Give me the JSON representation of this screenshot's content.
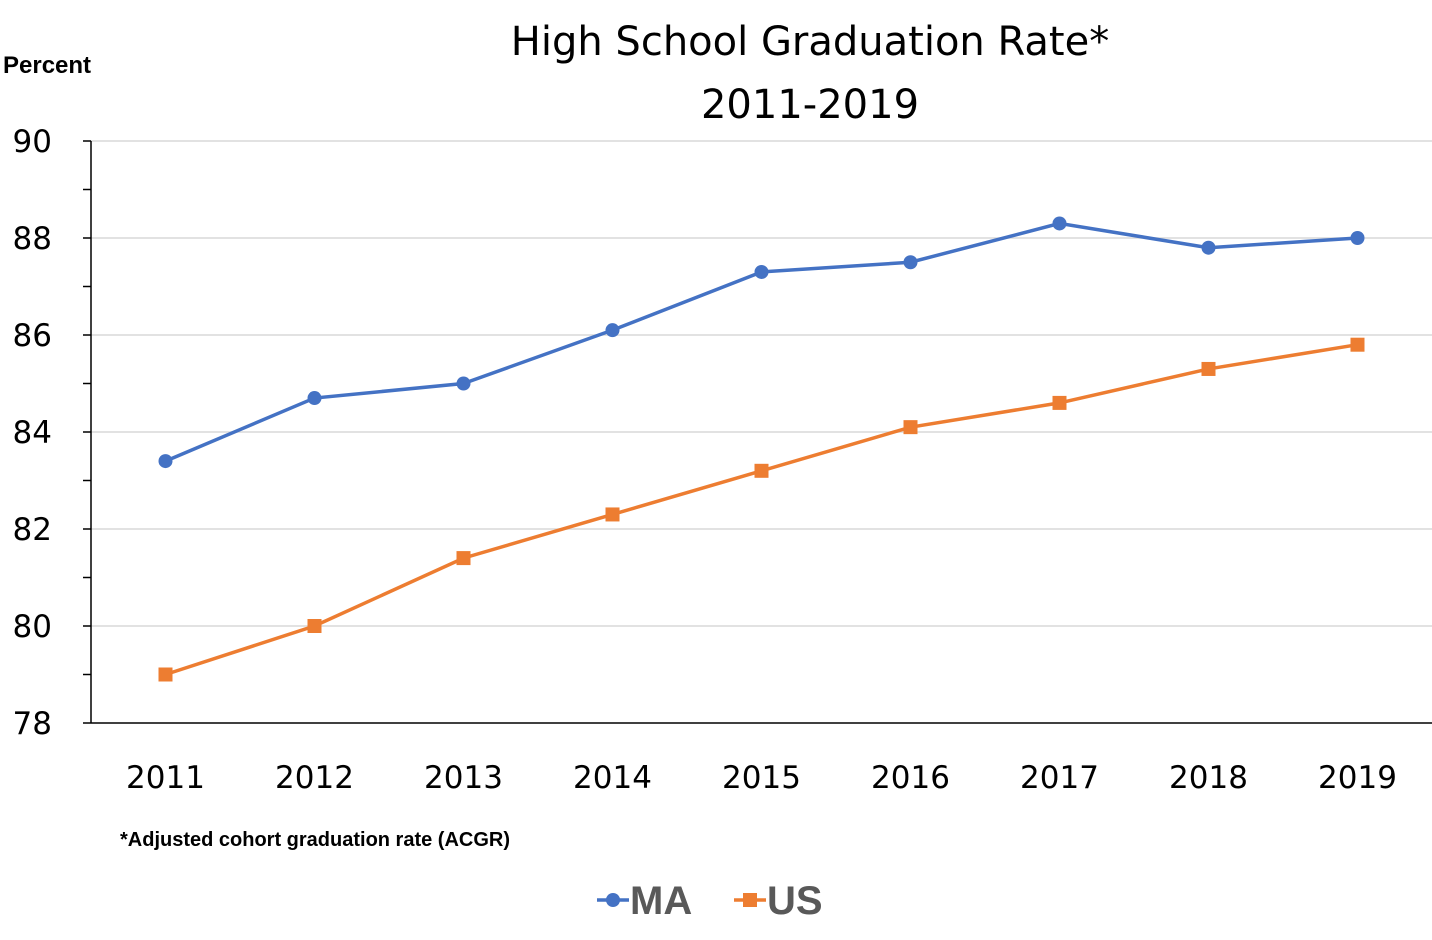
{
  "chart_data": {
    "type": "line",
    "title": "High School Graduation Rate*",
    "subtitle": "2011-2019",
    "ylabel": "Percent",
    "xlabel": "",
    "note": "*Adjusted cohort graduation rate (ACGR)",
    "categories": [
      "2011",
      "2012",
      "2013",
      "2014",
      "2015",
      "2016",
      "2017",
      "2018",
      "2019"
    ],
    "ylim": [
      78,
      90
    ],
    "yticks": [
      78,
      80,
      82,
      84,
      86,
      88,
      90
    ],
    "grid": true,
    "legend": "bottom",
    "series": [
      {
        "name": "MA",
        "color": "#4472C4",
        "marker": "circle",
        "values": [
          83.4,
          84.7,
          85.0,
          86.1,
          87.3,
          87.5,
          88.3,
          87.8,
          88.0
        ]
      },
      {
        "name": "US",
        "color": "#ED7D31",
        "marker": "square",
        "values": [
          79.0,
          80.0,
          81.4,
          82.3,
          83.2,
          84.1,
          84.6,
          85.3,
          85.8
        ]
      }
    ]
  }
}
